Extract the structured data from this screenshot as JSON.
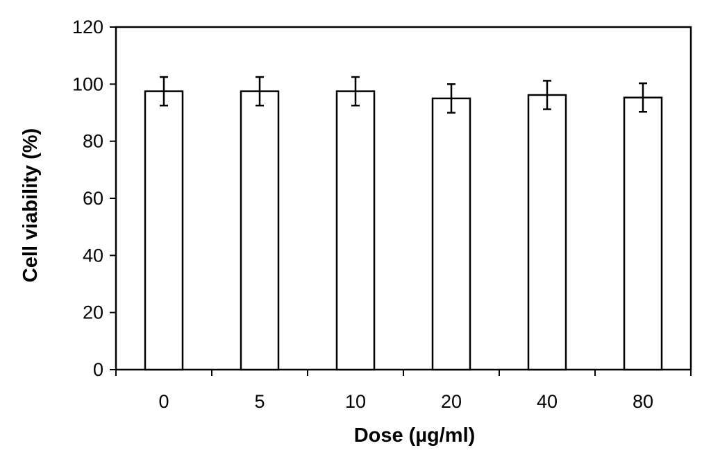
{
  "chart_data": {
    "type": "bar",
    "title": "",
    "xlabel": "Dose (µg/ml)",
    "ylabel": "Cell viability (%)",
    "categories": [
      "0",
      "5",
      "10",
      "20",
      "40",
      "80"
    ],
    "values": [
      97.5,
      97.5,
      97.5,
      95,
      96.2,
      95.3
    ],
    "errors": [
      5,
      5,
      5,
      5,
      5,
      5
    ],
    "ylim": [
      0,
      120
    ],
    "yticks": [
      "0",
      "20",
      "40",
      "60",
      "80",
      "100",
      "120"
    ],
    "grid": false,
    "legend": "none",
    "bar_fill": "#ffffff",
    "bar_stroke": "#000000"
  }
}
